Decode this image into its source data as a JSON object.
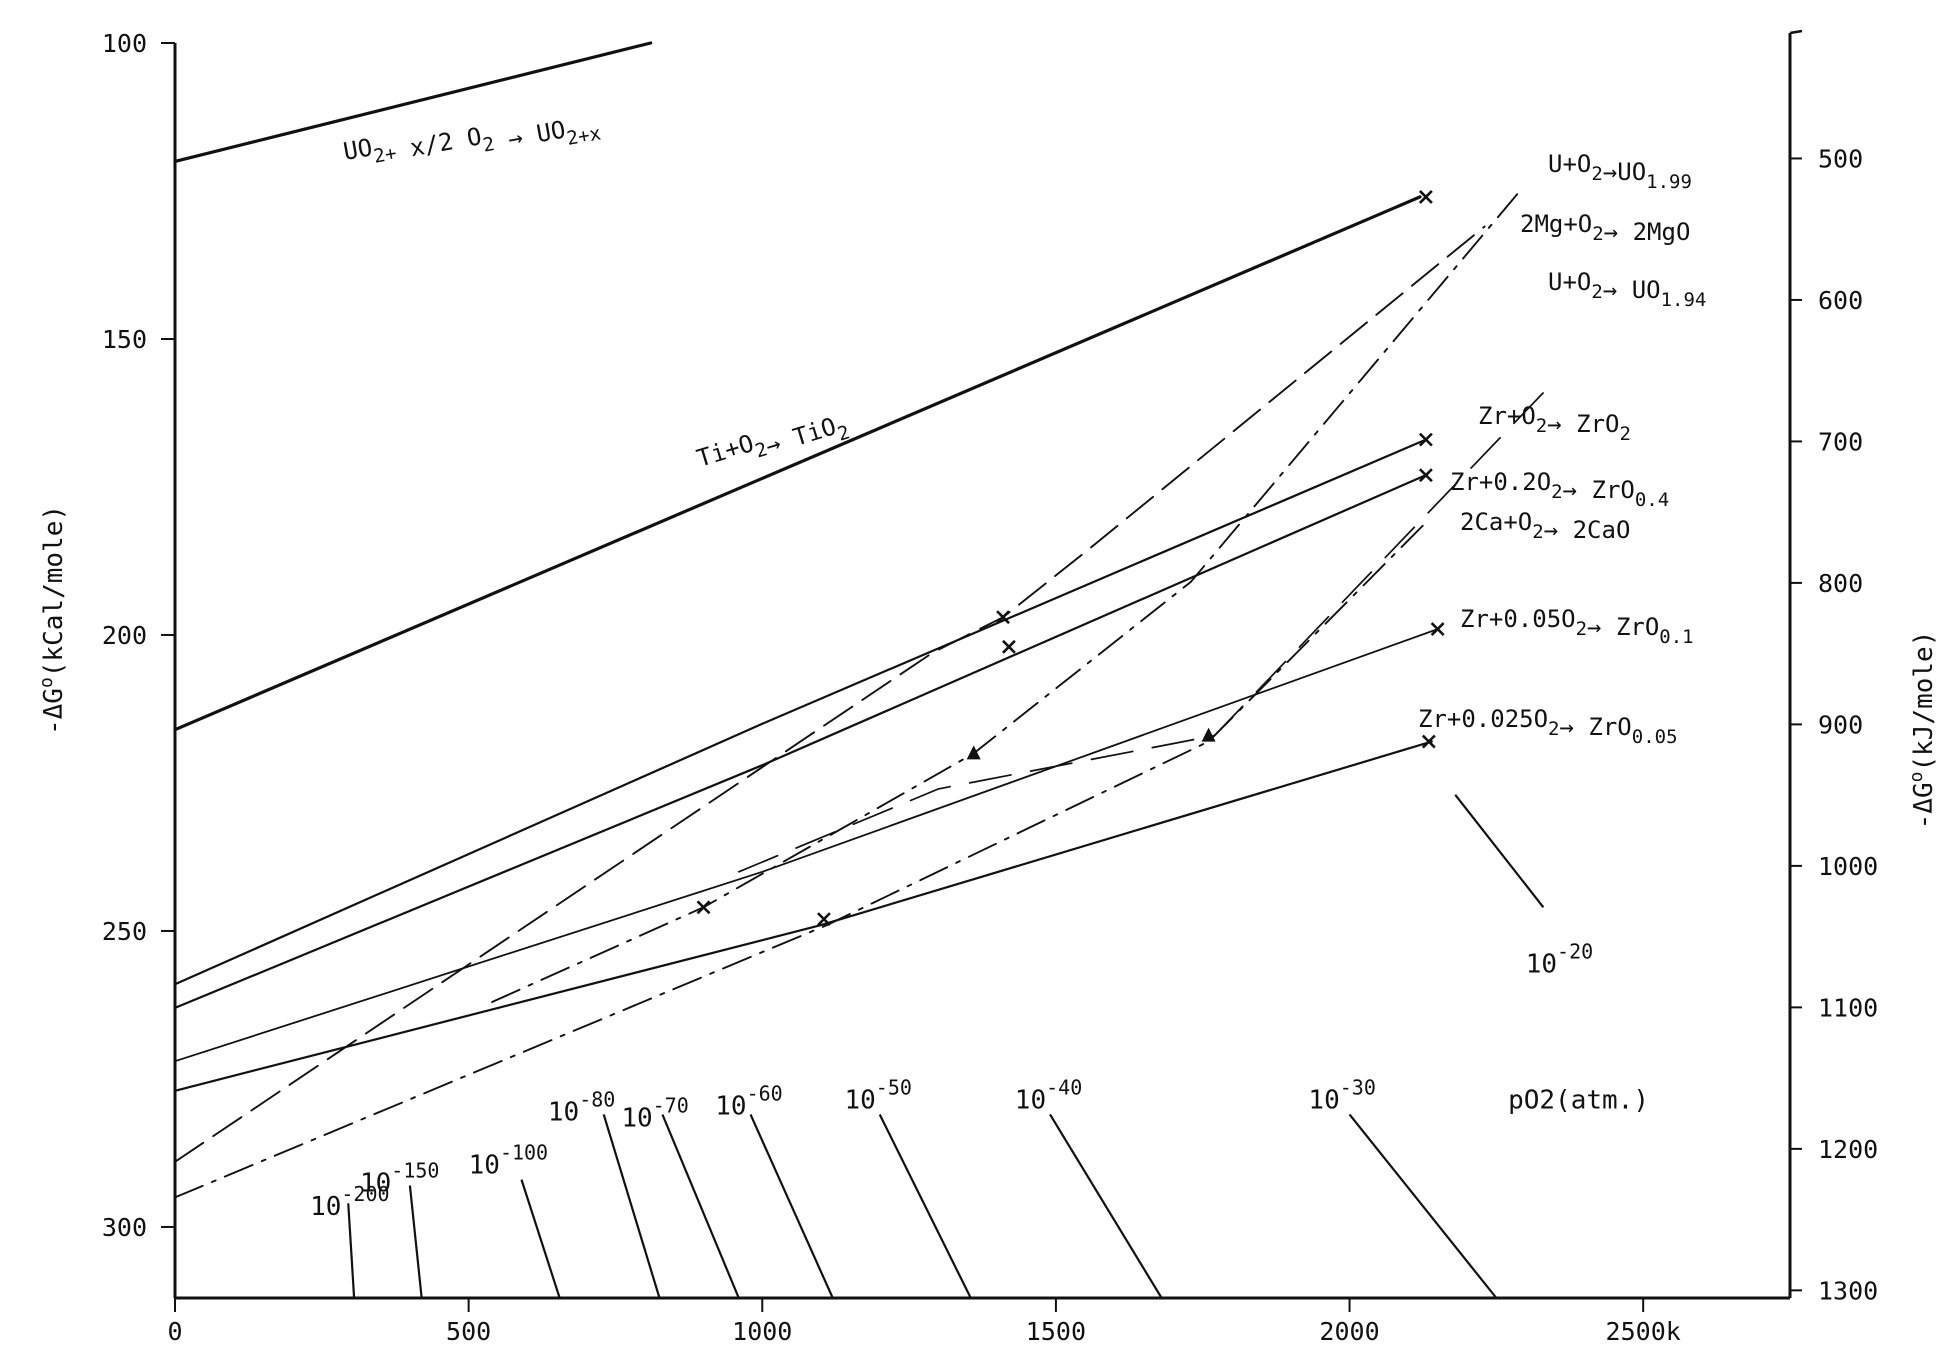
{
  "chart_data": {
    "type": "line",
    "title": "",
    "xlabel": "",
    "ylabel_left": "-ΔG°(kCal/mole)",
    "ylabel_right": "-ΔG°(kJ/mole)",
    "xlim": [
      0,
      2750
    ],
    "ylim": [
      312,
      100
    ],
    "x_ticks": [
      {
        "value": 0,
        "label": "0"
      },
      {
        "value": 500,
        "label": "500"
      },
      {
        "value": 1000,
        "label": "1000"
      },
      {
        "value": 1500,
        "label": "1500"
      },
      {
        "value": 2000,
        "label": "2000"
      },
      {
        "value": 2500,
        "label": "2500k"
      }
    ],
    "y_ticks": [
      {
        "value": 100,
        "label": "100"
      },
      {
        "value": 150,
        "label": "150"
      },
      {
        "value": 200,
        "label": "200"
      },
      {
        "value": 250,
        "label": "250"
      },
      {
        "value": 300,
        "label": "300"
      }
    ],
    "y2_ticks": [
      {
        "value": 500,
        "label": "500"
      },
      {
        "value": 600,
        "label": "600"
      },
      {
        "value": 700,
        "label": "700"
      },
      {
        "value": 800,
        "label": "800"
      },
      {
        "value": 900,
        "label": "900"
      },
      {
        "value": 1000,
        "label": "1000"
      },
      {
        "value": 1100,
        "label": "1100"
      },
      {
        "value": 1200,
        "label": "1200"
      },
      {
        "value": 1300,
        "label": "1300"
      }
    ],
    "y2_kj_per_kcal": 4.184,
    "grid": false,
    "legend": "none",
    "series": [
      {
        "name": "UO₂+ x/2 O₂→UO₂₊ₓ",
        "style": "solid",
        "weight": 3.2,
        "x": [
          0,
          810
        ],
        "y": [
          120,
          100
        ]
      },
      {
        "name": "Ti+O₂→TiO₂",
        "style": "solid",
        "weight": 3.2,
        "x": [
          0,
          2120
        ],
        "y": [
          216,
          126
        ]
      },
      {
        "name": "Zr+O₂→ZrO₂",
        "style": "solid",
        "weight": 2.2,
        "x": [
          0,
          1000,
          2130
        ],
        "y": [
          259,
          215,
          167
        ]
      },
      {
        "name": "Zr+0.2O₂→ZrO₀.₄",
        "style": "solid",
        "weight": 2.2,
        "x": [
          0,
          1000,
          2130
        ],
        "y": [
          263,
          222,
          173
        ]
      },
      {
        "name": "Zr+0.05O₂→ZrO₀.₁",
        "style": "solid",
        "weight": 1.8,
        "x": [
          0,
          1000,
          2150
        ],
        "y": [
          272,
          240,
          199
        ]
      },
      {
        "name": "Zr+0.025O₂→ZrO₀.₀₅",
        "style": "solid",
        "weight": 2.2,
        "x": [
          0,
          1100,
          2140
        ],
        "y": [
          277,
          249,
          218
        ]
      },
      {
        "name": "2Mg+O₂→2MgO",
        "style": "dashed",
        "weight": 1.9,
        "x": [
          0,
          1290,
          1410,
          1550,
          2230
        ],
        "y": [
          289,
          203,
          197,
          186,
          131
        ]
      },
      {
        "name": "U+O₂→UO₁.₉₉",
        "style": "dashdot",
        "weight": 1.9,
        "x": [
          540,
          900,
          1360,
          1730,
          2290
        ],
        "y": [
          262,
          246,
          220,
          191,
          125
        ]
      },
      {
        "name": "U+O₂→UO₁.₉₄",
        "style": "dashed-long",
        "weight": 1.7,
        "x": [
          960,
          1300,
          1770,
          2350
        ],
        "y": [
          240,
          226,
          217,
          157
        ]
      },
      {
        "name": "2Ca+O₂→2CaO",
        "style": "dashdot",
        "weight": 1.9,
        "x": [
          0,
          1110,
          1760,
          2130
        ],
        "y": [
          295,
          249,
          218,
          181
        ]
      }
    ],
    "markers": [
      {
        "type": "x",
        "x": 2130,
        "y": 126
      },
      {
        "type": "x",
        "x": 2130,
        "y": 167
      },
      {
        "type": "x",
        "x": 2130,
        "y": 173
      },
      {
        "type": "x",
        "x": 2150,
        "y": 199
      },
      {
        "type": "x",
        "x": 2135,
        "y": 218
      },
      {
        "type": "x",
        "x": 1410,
        "y": 197
      },
      {
        "type": "x",
        "x": 1420,
        "y": 202
      },
      {
        "type": "x",
        "x": 900,
        "y": 246
      },
      {
        "type": "x",
        "x": 1105,
        "y": 248
      },
      {
        "type": "triangle",
        "x": 1360,
        "y": 220
      },
      {
        "type": "triangle",
        "x": 1760,
        "y": 217
      }
    ],
    "annotations": [
      {
        "id": "uo2x",
        "text": "UO2+ x/2 O2 → UO2+x"
      },
      {
        "id": "tio2",
        "text": "Ti+O2→ TiO2"
      },
      {
        "id": "uo199",
        "text": "U+O2→UO1.99"
      },
      {
        "id": "mgo",
        "text": "2Mg+O2→ 2MgO"
      },
      {
        "id": "uo194",
        "text": "U+O2→ UO1.94"
      },
      {
        "id": "zro2",
        "text": "Zr+O2→ ZrO2"
      },
      {
        "id": "zro04",
        "text": "Zr+0.2O2→ ZrO0.4"
      },
      {
        "id": "cao",
        "text": "2Ca+O2→ 2CaO"
      },
      {
        "id": "zro01",
        "text": "Zr+0.05O2→ ZrO0.1"
      },
      {
        "id": "zro005",
        "text": "Zr+0.025O2→ ZrO0.05"
      }
    ],
    "po2_label": "pO2(atm.)",
    "po2_isobars": [
      {
        "exponent": "-200",
        "x": [
          295,
          305
        ],
        "y": [
          296,
          312
        ],
        "label_x": 230,
        "label_y": 298
      },
      {
        "exponent": "-150",
        "x": [
          400,
          420
        ],
        "y": [
          293,
          312
        ],
        "label_x": 315,
        "label_y": 294
      },
      {
        "exponent": "-100",
        "x": [
          590,
          655
        ],
        "y": [
          292,
          312
        ],
        "label_x": 500,
        "label_y": 291
      },
      {
        "exponent": "-80",
        "x": [
          730,
          825
        ],
        "y": [
          281,
          312
        ],
        "label_x": 635,
        "label_y": 282
      },
      {
        "exponent": "-70",
        "x": [
          830,
          960
        ],
        "y": [
          281,
          312
        ],
        "label_x": 760,
        "label_y": 283
      },
      {
        "exponent": "-60",
        "x": [
          980,
          1120
        ],
        "y": [
          281,
          312
        ],
        "label_x": 920,
        "label_y": 281
      },
      {
        "exponent": "-50",
        "x": [
          1200,
          1355
        ],
        "y": [
          281,
          312
        ],
        "label_x": 1140,
        "label_y": 280
      },
      {
        "exponent": "-40",
        "x": [
          1490,
          1680
        ],
        "y": [
          281,
          312
        ],
        "label_x": 1430,
        "label_y": 280
      },
      {
        "exponent": "-30",
        "x": [
          2000,
          2250
        ],
        "y": [
          281,
          312
        ],
        "label_x": 1930,
        "label_y": 280
      },
      {
        "exponent": "-20",
        "x": [
          2180,
          2330
        ],
        "y": [
          227,
          246
        ],
        "label_x": 2300,
        "label_y": 257
      }
    ]
  }
}
